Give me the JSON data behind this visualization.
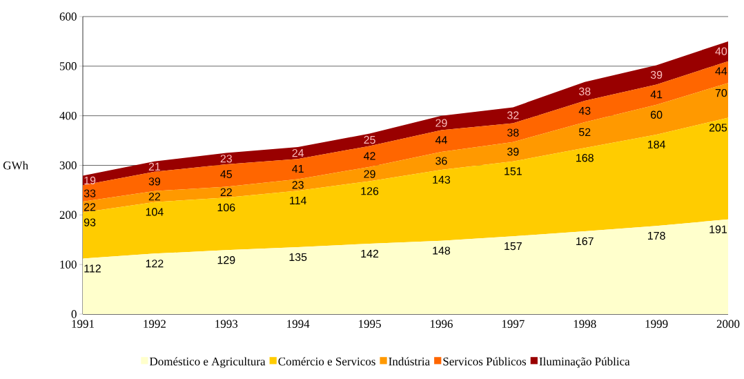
{
  "chart_data": {
    "type": "area",
    "stacked": true,
    "ylabel": "GWh",
    "x": [
      1991,
      1992,
      1993,
      1994,
      1995,
      1996,
      1997,
      1998,
      1999,
      2000
    ],
    "xlim": [
      1991,
      2000
    ],
    "xticks": [
      1991,
      1992,
      1993,
      1994,
      1995,
      1996,
      1997,
      1998,
      1999,
      2000
    ],
    "ylim": [
      0,
      600
    ],
    "yticks": [
      0,
      100,
      200,
      300,
      400,
      500,
      600
    ],
    "grid": "y",
    "legend": "bottom",
    "data_labels": true,
    "series": [
      {
        "name": "Doméstico e Agricultura",
        "color": "#ffffcc",
        "values": [
          112,
          122,
          129,
          135,
          142,
          148,
          157,
          167,
          178,
          191
        ]
      },
      {
        "name": "Comércio e Servicos",
        "color": "#ffcc00",
        "values": [
          93,
          104,
          106,
          114,
          126,
          143,
          151,
          168,
          184,
          205
        ]
      },
      {
        "name": "Indústria",
        "color": "#ff9900",
        "values": [
          22,
          22,
          22,
          23,
          29,
          36,
          39,
          52,
          60,
          70
        ]
      },
      {
        "name": "Servicos Públicos",
        "color": "#ff6600",
        "values": [
          33,
          39,
          45,
          41,
          42,
          44,
          38,
          43,
          41,
          44
        ]
      },
      {
        "name": "Iluminação Pública",
        "color": "#990000",
        "values": [
          19,
          21,
          23,
          24,
          25,
          29,
          32,
          38,
          39,
          40
        ]
      }
    ]
  }
}
